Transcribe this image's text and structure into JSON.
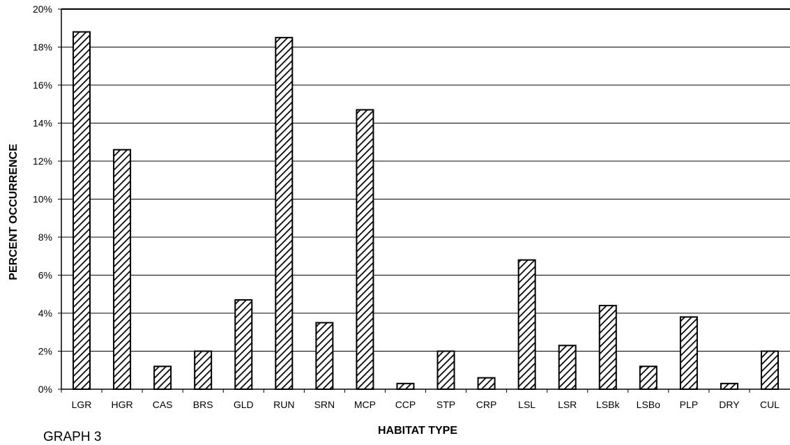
{
  "caption": "GRAPH 3",
  "chart_data": {
    "type": "bar",
    "title": "",
    "xlabel": "HABITAT TYPE",
    "ylabel": "PERCENT OCCURRENCE",
    "categories": [
      "LGR",
      "HGR",
      "CAS",
      "BRS",
      "GLD",
      "RUN",
      "SRN",
      "MCP",
      "CCP",
      "STP",
      "CRP",
      "LSL",
      "LSR",
      "LSBk",
      "LSBo",
      "PLP",
      "DRY",
      "CUL"
    ],
    "values": [
      18.8,
      12.6,
      1.2,
      2.0,
      4.7,
      18.5,
      3.5,
      14.7,
      0.3,
      2.0,
      0.6,
      6.8,
      2.3,
      4.4,
      1.2,
      3.8,
      0.3,
      2.0
    ],
    "ylim": [
      0,
      20
    ],
    "yticks": [
      "0%",
      "2%",
      "4%",
      "6%",
      "8%",
      "10%",
      "12%",
      "14%",
      "16%",
      "18%",
      "20%"
    ],
    "grid": true,
    "bar_fill": "diagonal hatch",
    "colors": {
      "bar_stroke": "#000000",
      "hatch": "#000000",
      "grid": "#000000",
      "background": "#ffffff"
    }
  }
}
